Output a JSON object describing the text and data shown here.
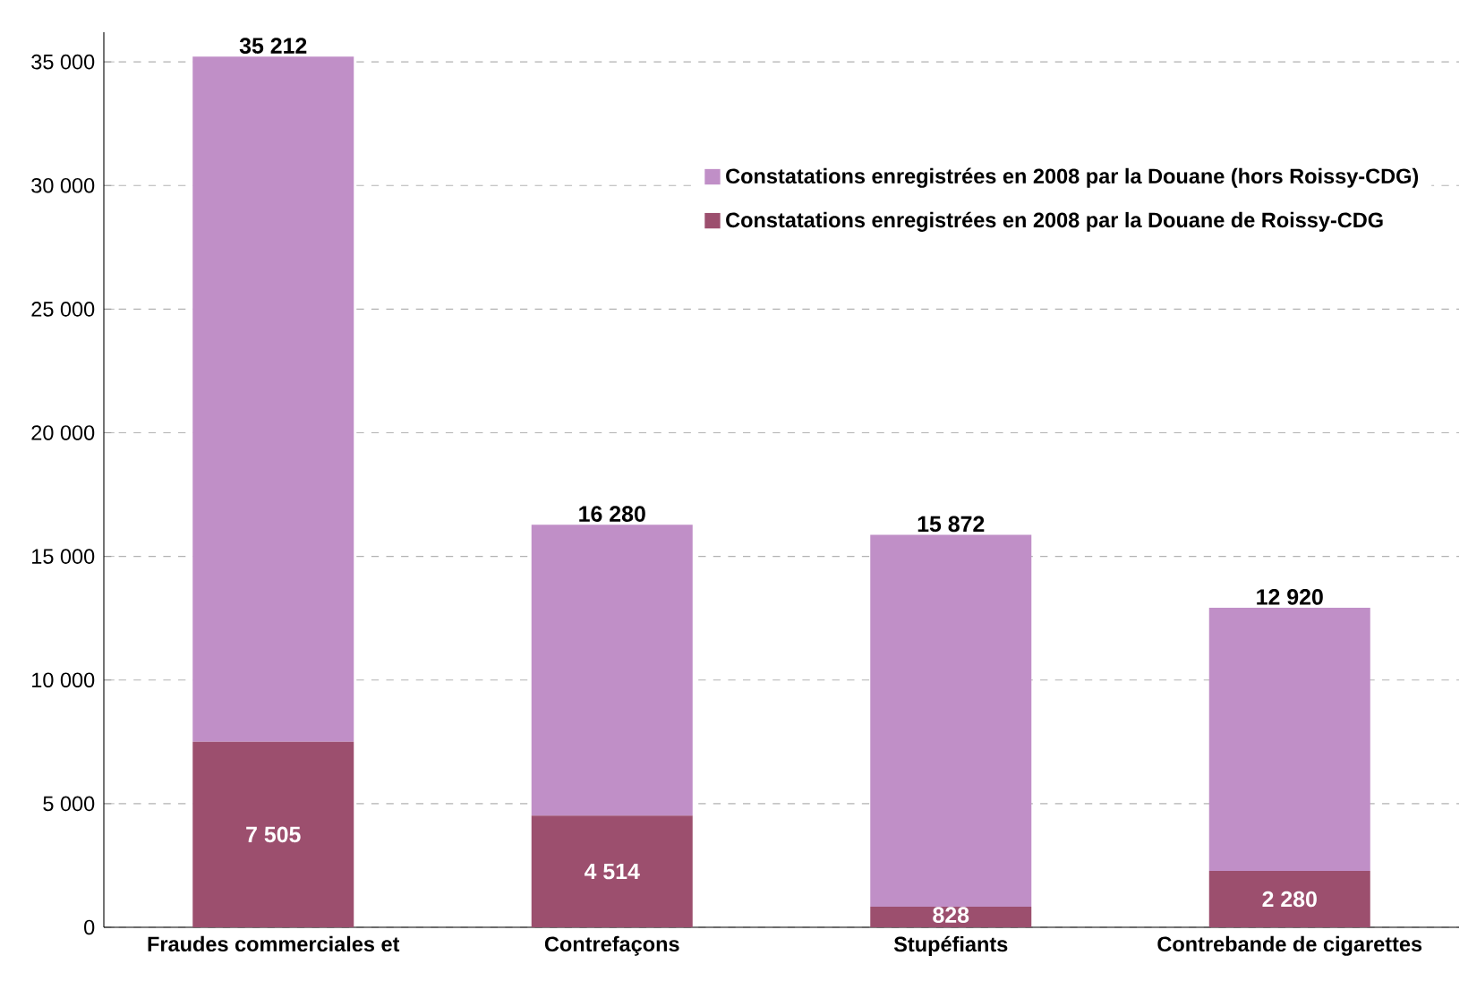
{
  "chart_data": {
    "type": "bar",
    "stacked": true,
    "categories": [
      "Fraudes commerciales et",
      "Contrefaçons",
      "Stupéfiants",
      "Contrebande de cigarettes"
    ],
    "series": [
      {
        "name": "Constatations enregistrées en 2008 par la Douane de Roissy-CDG",
        "color": "#9c4f6e",
        "values": [
          7505,
          4514,
          828,
          2280
        ],
        "value_labels": [
          "7 505",
          "4 514",
          "828",
          "2 280"
        ]
      },
      {
        "name": "Constatations enregistrées en 2008 par la Douane (hors Roissy-CDG)",
        "color": "#c08fc7",
        "values": [
          27707,
          11766,
          15044,
          10640
        ]
      }
    ],
    "totals": [
      "35 212",
      "16 280",
      "15 872",
      "12 920"
    ],
    "ylim": [
      0,
      36200
    ],
    "yticks": [
      0,
      {
        "value": 5000,
        "label": "5 000"
      },
      {
        "value": 10000,
        "label": "10 000"
      },
      {
        "value": 15000,
        "label": "15 000"
      },
      {
        "value": 20000,
        "label": "20 000"
      },
      {
        "value": 25000,
        "label": "25 000"
      },
      {
        "value": 30000,
        "label": "30 000"
      },
      {
        "value": 35000,
        "label": "35 000"
      }
    ],
    "grid": "y",
    "legend": "top right"
  }
}
